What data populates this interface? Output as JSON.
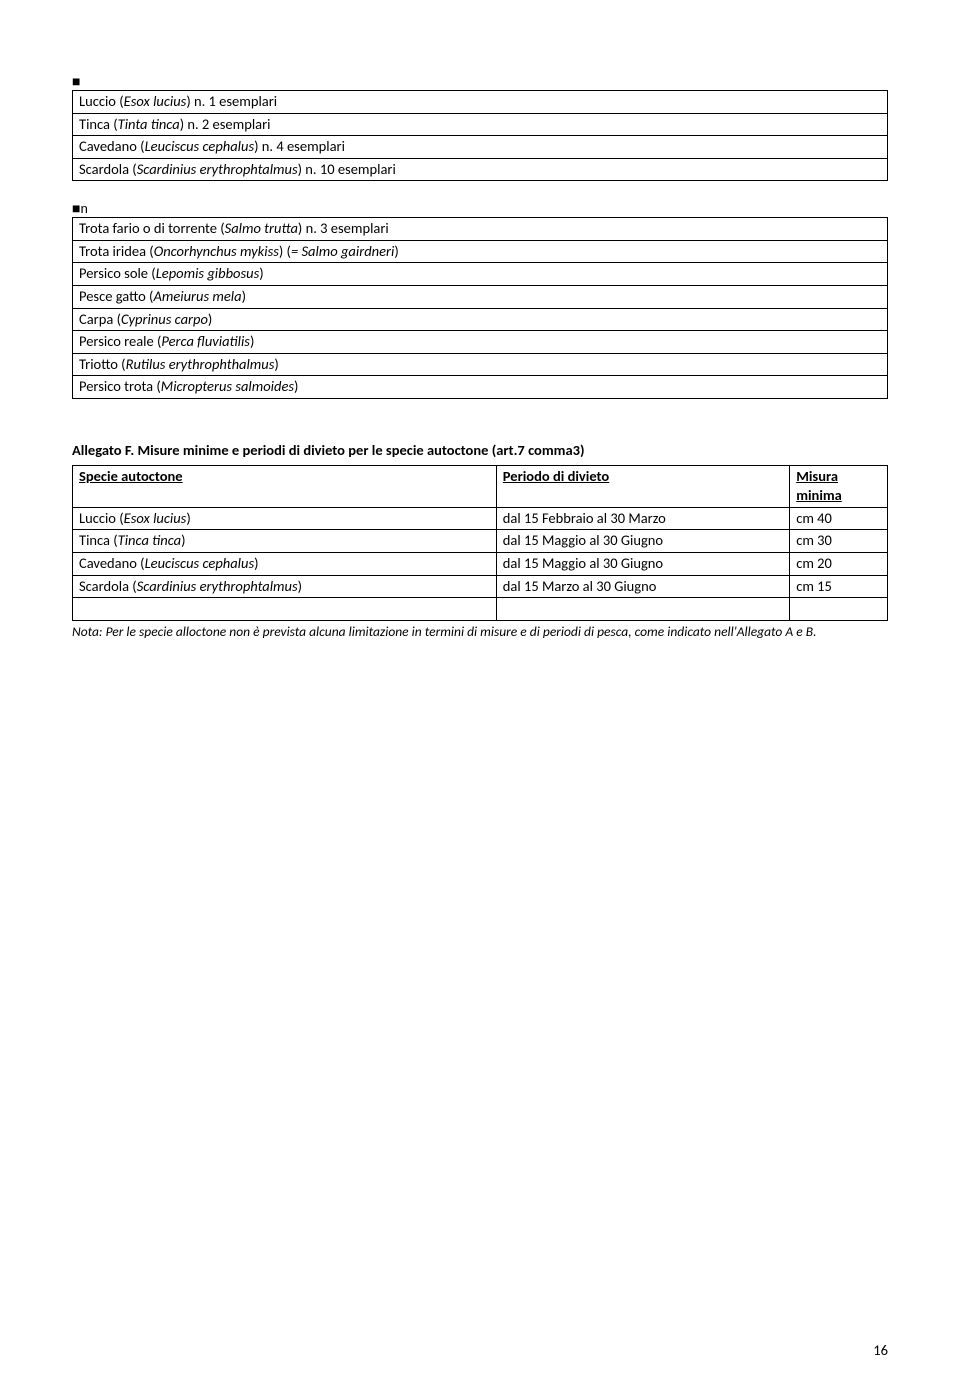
{
  "bullet": "■",
  "bullet_n": "■n",
  "table1": {
    "rows": [
      {
        "name": "Luccio",
        "sci": "Esox lucius",
        "qty": "n. 1 esemplari"
      },
      {
        "name": "Tinca",
        "sci": "Tinta tinca",
        "qty": "n. 2 esemplari"
      },
      {
        "name": "Cavedano",
        "sci": "Leuciscus cephalus",
        "qty": "n. 4 esemplari"
      },
      {
        "name": "Scardola",
        "sci": "Scardinius erythrophtalmus",
        "qty": "n. 10 esemplari"
      }
    ]
  },
  "table2": {
    "rows": [
      {
        "name": "Trota fario o di torrente",
        "sci": "Salmo trutta",
        "suffix": " n. 3 esemplari"
      },
      {
        "name": "Trota iridea",
        "sci": "Oncorhynchus mykiss",
        "suffix_paren": "= Salmo gairdneri"
      },
      {
        "name": "Persico sole",
        "sci": "Lepomis gibbosus",
        "suffix": ""
      },
      {
        "name": "Pesce gatto",
        "sci": "Ameiurus mela",
        "suffix": ""
      },
      {
        "name": "Carpa",
        "sci": "Cyprinus carpo",
        "suffix": ""
      },
      {
        "name": "Persico reale",
        "sci": "Perca fluviatilis",
        "suffix": ""
      },
      {
        "name": "Triotto",
        "sci": "Rutilus erythrophthalmus",
        "suffix": ""
      },
      {
        "name": "Persico trota",
        "sci": "Micropterus salmoides",
        "suffix": ""
      }
    ]
  },
  "allegato_heading": "Allegato F. Misure minime e periodi di divieto per le specie autoctone (art.7 comma3)",
  "table3": {
    "header_species": "Specie autoctone",
    "header_period": "Periodo di divieto",
    "header_measure1": "Misura",
    "header_measure2": "minima",
    "rows": [
      {
        "name": "Luccio",
        "sci": "Esox lucius",
        "period": "dal 15 Febbraio al 30 Marzo",
        "measure": "cm 40"
      },
      {
        "name": "Tinca",
        "sci": "Tinca tinca",
        "period": "dal 15 Maggio al 30 Giugno",
        "measure": "cm 30"
      },
      {
        "name": "Cavedano ",
        "sci": "Leuciscus cephalus",
        "period": "dal 15 Maggio al 30 Giugno",
        "measure": "cm 20"
      },
      {
        "name": "Scardola",
        "sci": "Scardinius erythrophtalmus",
        "period": "dal 15 Marzo al 30 Giugno",
        "measure": "cm 15"
      }
    ]
  },
  "note": "Nota: Per le specie alloctone non è prevista alcuna limitazione in termini di misure e di periodi di pesca, come indicato nell'Allegato A e B.",
  "page_number": "16"
}
